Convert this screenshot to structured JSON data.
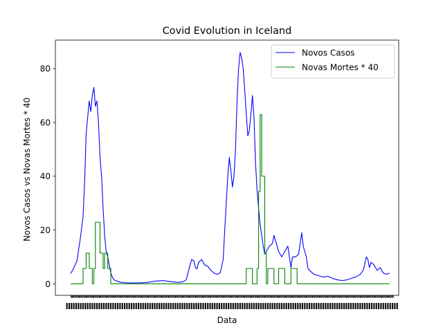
{
  "chart_data": {
    "type": "line",
    "title": "Covid Evolution in Iceland",
    "xlabel": "Data",
    "ylabel": "Novos Casos vs Novas Mortes * 40",
    "ylim": [
      -4.3,
      90.6
    ],
    "yticks": [
      0,
      20,
      40,
      60,
      80
    ],
    "xtick_labels_overlapping": true,
    "grid": false,
    "legend_position": "top-right",
    "n_days": 420,
    "series": [
      {
        "name": "Novos Casos",
        "color": "#0000ff",
        "points": [
          [
            0,
            3.8
          ],
          [
            4,
            6
          ],
          [
            8,
            8.5
          ],
          [
            12,
            16
          ],
          [
            16,
            25
          ],
          [
            18,
            38
          ],
          [
            20,
            56
          ],
          [
            22,
            62
          ],
          [
            24,
            68
          ],
          [
            26,
            64
          ],
          [
            28,
            70
          ],
          [
            30,
            73
          ],
          [
            32,
            66
          ],
          [
            34,
            68
          ],
          [
            36,
            60
          ],
          [
            38,
            47
          ],
          [
            40,
            40
          ],
          [
            42,
            28
          ],
          [
            44,
            18
          ],
          [
            46,
            12
          ],
          [
            48,
            10
          ],
          [
            50,
            7
          ],
          [
            52,
            4
          ],
          [
            54,
            2.5
          ],
          [
            56,
            1.5
          ],
          [
            60,
            1
          ],
          [
            64,
            0.6
          ],
          [
            70,
            0.4
          ],
          [
            80,
            0.3
          ],
          [
            90,
            0.3
          ],
          [
            100,
            0.5
          ],
          [
            110,
            1
          ],
          [
            120,
            1.2
          ],
          [
            130,
            0.8
          ],
          [
            140,
            0.5
          ],
          [
            146,
            0.8
          ],
          [
            150,
            1.5
          ],
          [
            154,
            6
          ],
          [
            157,
            9
          ],
          [
            160,
            8.5
          ],
          [
            162,
            6
          ],
          [
            164,
            5.5
          ],
          [
            166,
            8
          ],
          [
            170,
            9
          ],
          [
            174,
            7
          ],
          [
            178,
            6.5
          ],
          [
            182,
            5
          ],
          [
            186,
            4
          ],
          [
            190,
            3.5
          ],
          [
            194,
            4
          ],
          [
            198,
            9
          ],
          [
            200,
            20
          ],
          [
            202,
            30
          ],
          [
            204,
            40
          ],
          [
            206,
            47
          ],
          [
            208,
            42
          ],
          [
            210,
            36
          ],
          [
            212,
            40
          ],
          [
            214,
            50
          ],
          [
            216,
            68
          ],
          [
            218,
            80
          ],
          [
            220,
            86
          ],
          [
            222,
            84
          ],
          [
            224,
            80
          ],
          [
            226,
            72
          ],
          [
            228,
            63
          ],
          [
            230,
            55
          ],
          [
            232,
            57
          ],
          [
            234,
            63
          ],
          [
            236,
            70
          ],
          [
            238,
            62
          ],
          [
            240,
            45
          ],
          [
            242,
            35
          ],
          [
            244,
            28
          ],
          [
            246,
            22
          ],
          [
            248,
            18
          ],
          [
            250,
            14
          ],
          [
            252,
            11
          ],
          [
            254,
            12
          ],
          [
            258,
            14
          ],
          [
            262,
            15
          ],
          [
            264,
            18
          ],
          [
            266,
            16
          ],
          [
            270,
            12
          ],
          [
            274,
            10
          ],
          [
            278,
            12
          ],
          [
            282,
            14
          ],
          [
            284,
            10
          ],
          [
            286,
            6
          ],
          [
            288,
            10
          ],
          [
            292,
            10
          ],
          [
            296,
            11
          ],
          [
            298,
            15
          ],
          [
            300,
            19
          ],
          [
            302,
            14
          ],
          [
            304,
            12
          ],
          [
            306,
            10
          ],
          [
            308,
            6
          ],
          [
            310,
            5
          ],
          [
            316,
            3.5
          ],
          [
            322,
            3
          ],
          [
            328,
            2.5
          ],
          [
            334,
            2.8
          ],
          [
            340,
            2
          ],
          [
            346,
            1.5
          ],
          [
            352,
            1.2
          ],
          [
            358,
            1.4
          ],
          [
            364,
            2
          ],
          [
            370,
            2.5
          ],
          [
            376,
            3.5
          ],
          [
            380,
            5
          ],
          [
            384,
            10
          ],
          [
            386,
            9
          ],
          [
            388,
            6
          ],
          [
            390,
            8
          ],
          [
            394,
            7
          ],
          [
            398,
            5
          ],
          [
            402,
            6
          ],
          [
            406,
            4
          ],
          [
            410,
            3.5
          ],
          [
            414,
            4
          ]
        ]
      },
      {
        "name": "Novas Mortes * 40",
        "color": "#008000",
        "points": [
          [
            0,
            0
          ],
          [
            16,
            0
          ],
          [
            16,
            5.7
          ],
          [
            20,
            5.7
          ],
          [
            20,
            11.4
          ],
          [
            24,
            11.4
          ],
          [
            24,
            5.7
          ],
          [
            28,
            5.7
          ],
          [
            28,
            0
          ],
          [
            30,
            0
          ],
          [
            30,
            5.7
          ],
          [
            32,
            5.7
          ],
          [
            32,
            22.9
          ],
          [
            38,
            22.9
          ],
          [
            38,
            11.4
          ],
          [
            42,
            11.4
          ],
          [
            42,
            5.7
          ],
          [
            44,
            5.7
          ],
          [
            44,
            11.4
          ],
          [
            48,
            11.4
          ],
          [
            48,
            5.7
          ],
          [
            52,
            5.7
          ],
          [
            52,
            0
          ],
          [
            228,
            0
          ],
          [
            228,
            5.7
          ],
          [
            236,
            5.7
          ],
          [
            236,
            0
          ],
          [
            242,
            0
          ],
          [
            242,
            5.7
          ],
          [
            244,
            5.7
          ],
          [
            244,
            34.3
          ],
          [
            246,
            34.3
          ],
          [
            246,
            62.9
          ],
          [
            248,
            62.9
          ],
          [
            248,
            40
          ],
          [
            252,
            40
          ],
          [
            252,
            11.4
          ],
          [
            254,
            11.4
          ],
          [
            254,
            0
          ],
          [
            256,
            0
          ],
          [
            256,
            5.7
          ],
          [
            264,
            5.7
          ],
          [
            264,
            0
          ],
          [
            270,
            0
          ],
          [
            270,
            5.7
          ],
          [
            278,
            5.7
          ],
          [
            278,
            0
          ],
          [
            286,
            0
          ],
          [
            286,
            5.7
          ],
          [
            294,
            5.7
          ],
          [
            294,
            0
          ],
          [
            414,
            0
          ]
        ]
      }
    ]
  }
}
